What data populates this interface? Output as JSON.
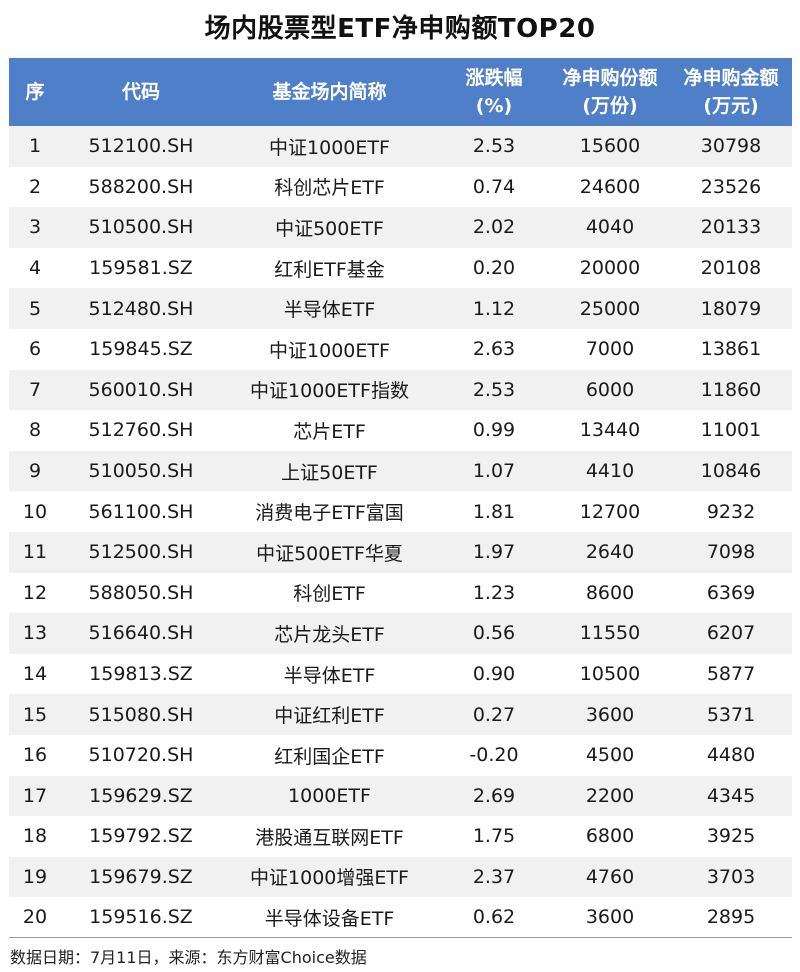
{
  "title": "场内股票型ETF净申购额TOP20",
  "headers": {
    "seq": "序",
    "code": "代码",
    "name": "基金场内简称",
    "change_l1": "涨跌幅",
    "change_l2": "(%)",
    "shares_l1": "净申购份额",
    "shares_l2": "(万份)",
    "amount_l1": "净申购金额",
    "amount_l2": "(万元)"
  },
  "rows": [
    {
      "seq": "1",
      "code": "512100.SH",
      "name": "中证1000ETF",
      "change": "2.53",
      "shares": "15600",
      "amount": "30798"
    },
    {
      "seq": "2",
      "code": "588200.SH",
      "name": "科创芯片ETF",
      "change": "0.74",
      "shares": "24600",
      "amount": "23526"
    },
    {
      "seq": "3",
      "code": "510500.SH",
      "name": "中证500ETF",
      "change": "2.02",
      "shares": "4040",
      "amount": "20133"
    },
    {
      "seq": "4",
      "code": "159581.SZ",
      "name": "红利ETF基金",
      "change": "0.20",
      "shares": "20000",
      "amount": "20108"
    },
    {
      "seq": "5",
      "code": "512480.SH",
      "name": "半导体ETF",
      "change": "1.12",
      "shares": "25000",
      "amount": "18079"
    },
    {
      "seq": "6",
      "code": "159845.SZ",
      "name": "中证1000ETF",
      "change": "2.63",
      "shares": "7000",
      "amount": "13861"
    },
    {
      "seq": "7",
      "code": "560010.SH",
      "name": "中证1000ETF指数",
      "change": "2.53",
      "shares": "6000",
      "amount": "11860"
    },
    {
      "seq": "8",
      "code": "512760.SH",
      "name": "芯片ETF",
      "change": "0.99",
      "shares": "13440",
      "amount": "11001"
    },
    {
      "seq": "9",
      "code": "510050.SH",
      "name": "上证50ETF",
      "change": "1.07",
      "shares": "4410",
      "amount": "10846"
    },
    {
      "seq": "10",
      "code": "561100.SH",
      "name": "消费电子ETF富国",
      "change": "1.81",
      "shares": "12700",
      "amount": "9232"
    },
    {
      "seq": "11",
      "code": "512500.SH",
      "name": "中证500ETF华夏",
      "change": "1.97",
      "shares": "2640",
      "amount": "7098"
    },
    {
      "seq": "12",
      "code": "588050.SH",
      "name": "科创ETF",
      "change": "1.23",
      "shares": "8600",
      "amount": "6369"
    },
    {
      "seq": "13",
      "code": "516640.SH",
      "name": "芯片龙头ETF",
      "change": "0.56",
      "shares": "11550",
      "amount": "6207"
    },
    {
      "seq": "14",
      "code": "159813.SZ",
      "name": "半导体ETF",
      "change": "0.90",
      "shares": "10500",
      "amount": "5877"
    },
    {
      "seq": "15",
      "code": "515080.SH",
      "name": "中证红利ETF",
      "change": "0.27",
      "shares": "3600",
      "amount": "5371"
    },
    {
      "seq": "16",
      "code": "510720.SH",
      "name": "红利国企ETF",
      "change": "-0.20",
      "shares": "4500",
      "amount": "4480"
    },
    {
      "seq": "17",
      "code": "159629.SZ",
      "name": "1000ETF",
      "change": "2.69",
      "shares": "2200",
      "amount": "4345"
    },
    {
      "seq": "18",
      "code": "159792.SZ",
      "name": "港股通互联网ETF",
      "change": "1.75",
      "shares": "6800",
      "amount": "3925"
    },
    {
      "seq": "19",
      "code": "159679.SZ",
      "name": "中证1000增强ETF",
      "change": "2.37",
      "shares": "4760",
      "amount": "3703"
    },
    {
      "seq": "20",
      "code": "159516.SZ",
      "name": "半导体设备ETF",
      "change": "0.62",
      "shares": "3600",
      "amount": "2895"
    }
  ],
  "footnote": "数据日期：7月11日，来源：东方财富Choice数据",
  "colors": {
    "header_bg": "#4f7fc9",
    "header_text": "#ffffff",
    "row_stripe": "#f1f1f1"
  }
}
